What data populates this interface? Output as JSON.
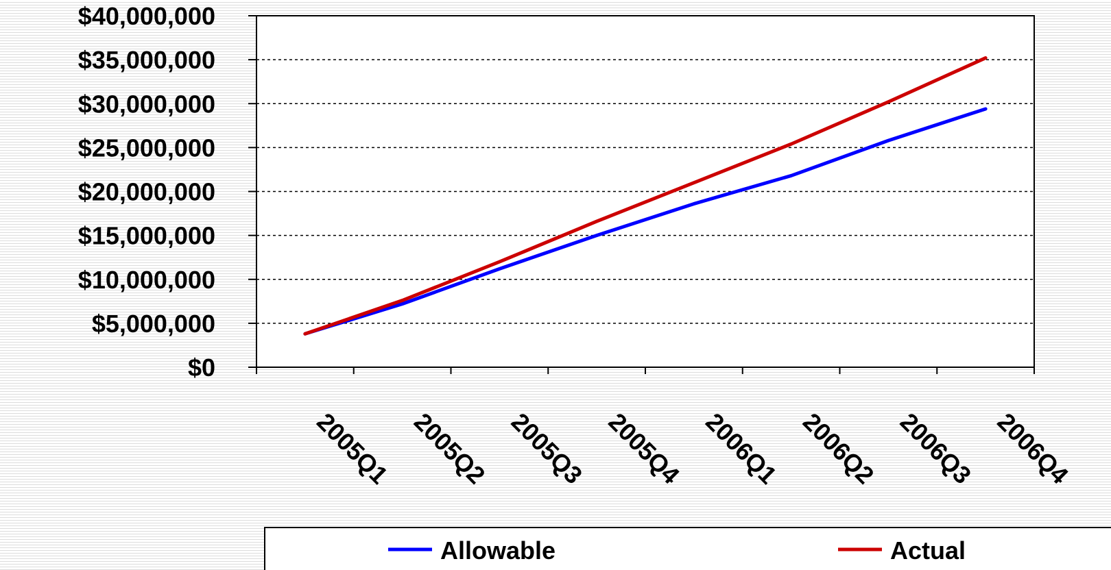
{
  "chart_data": {
    "type": "line",
    "categories": [
      "2005Q1",
      "2005Q2",
      "2005Q3",
      "2005Q4",
      "2006Q1",
      "2006Q2",
      "2006Q3",
      "2006Q4"
    ],
    "series": [
      {
        "name": "Allowable",
        "color": "#0000ff",
        "values": [
          3800000,
          7200000,
          11200000,
          15000000,
          18600000,
          21800000,
          25800000,
          29400000
        ]
      },
      {
        "name": "Actual",
        "color": "#cc0000",
        "values": [
          3800000,
          7600000,
          12000000,
          16600000,
          21000000,
          25400000,
          30200000,
          35200000
        ]
      }
    ],
    "y_tick_labels": [
      "$0",
      "$5,000,000",
      "$10,000,000",
      "$15,000,000",
      "$20,000,000",
      "$25,000,000",
      "$30,000,000",
      "$35,000,000",
      "$40,000,000"
    ],
    "y_ticks": [
      0,
      5000000,
      10000000,
      15000000,
      20000000,
      25000000,
      30000000,
      35000000,
      40000000
    ],
    "ylim": [
      0,
      40000000
    ],
    "grid": "horizontal dashed",
    "legend_position": "bottom"
  }
}
